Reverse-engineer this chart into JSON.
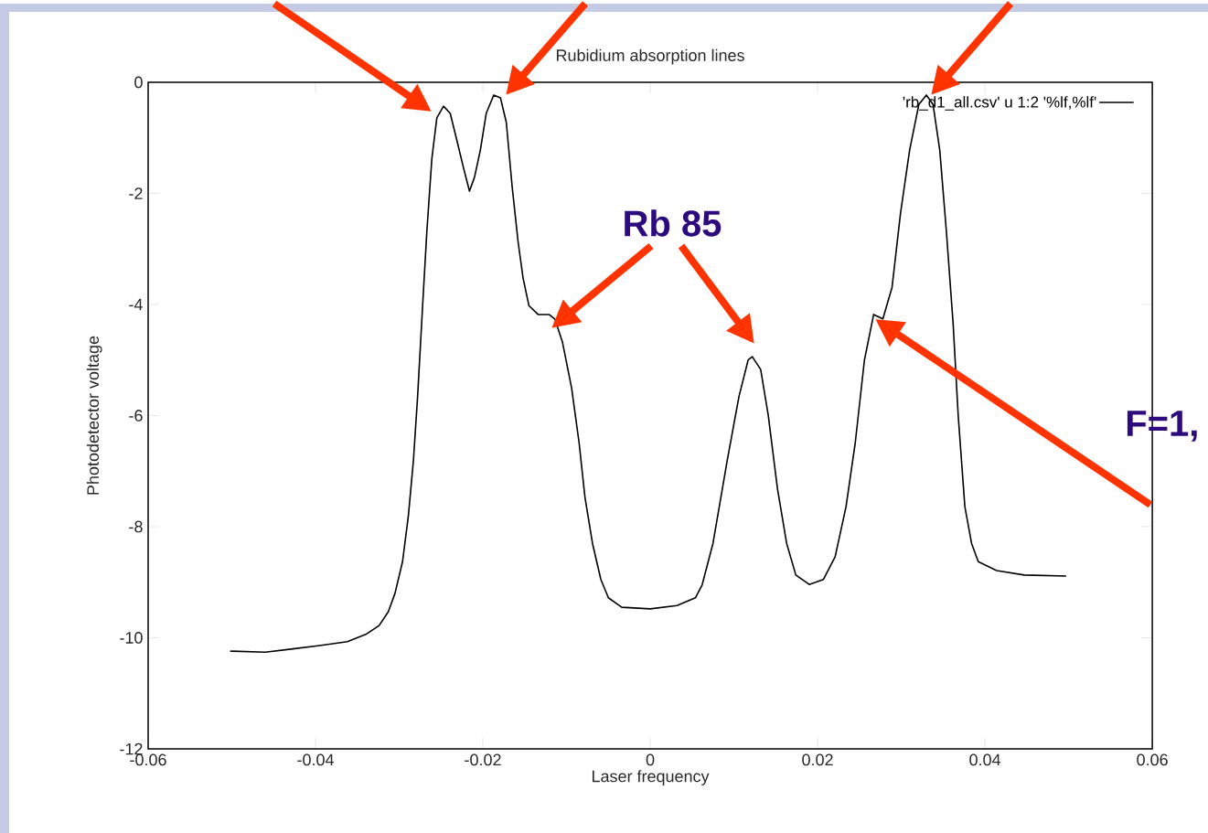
{
  "chart_data": {
    "type": "line",
    "title": "Rubidium absorption lines",
    "xlabel": "Laser frequency",
    "ylabel": "Photodetector voltage",
    "xlim": [
      -0.06,
      0.06
    ],
    "ylim": [
      -12,
      0
    ],
    "xticks": [
      -0.06,
      -0.04,
      -0.02,
      0,
      0.02,
      0.04,
      0.06
    ],
    "yticks": [
      -12,
      -10,
      -8,
      -6,
      -4,
      -2,
      0
    ],
    "grid": false,
    "legend": "top right",
    "line_style": "solid",
    "annotations": [
      "Rb 85",
      "F=1,"
    ],
    "series": [
      {
        "name": "'rb_d1_all.csv' u 1:2 '%lf,%lf'",
        "color": "#000000",
        "x": [
          -0.0502,
          -0.046,
          -0.0427,
          -0.0395,
          -0.0362,
          -0.034,
          -0.0324,
          -0.0313,
          -0.0305,
          -0.0296,
          -0.0289,
          -0.0283,
          -0.0278,
          -0.0272,
          -0.0267,
          -0.0261,
          -0.0255,
          -0.0247,
          -0.0239,
          -0.0231,
          -0.0223,
          -0.0216,
          -0.021,
          -0.0203,
          -0.0196,
          -0.0187,
          -0.0179,
          -0.0172,
          -0.0165,
          -0.0158,
          -0.0152,
          -0.0145,
          -0.0134,
          -0.0121,
          -0.0114,
          -0.0105,
          -0.0094,
          -0.0085,
          -0.0078,
          -0.0069,
          -0.0059,
          -0.005,
          -0.0034,
          0,
          0.0032,
          0.0054,
          0.0062,
          0.0075,
          0.0092,
          0.0106,
          0.0117,
          0.0122,
          0.0132,
          0.0141,
          0.0152,
          0.0163,
          0.0174,
          0.019,
          0.0207,
          0.0221,
          0.0234,
          0.0245,
          0.0256,
          0.0267,
          0.0278,
          0.0289,
          0.0299,
          0.031,
          0.0321,
          0.033,
          0.0338,
          0.0346,
          0.0354,
          0.0362,
          0.0368,
          0.0376,
          0.0384,
          0.0392,
          0.0414,
          0.0447,
          0.0497
        ],
        "values": [
          -10.24,
          -10.26,
          -10.2,
          -10.14,
          -10.07,
          -9.94,
          -9.78,
          -9.53,
          -9.2,
          -8.63,
          -7.8,
          -6.81,
          -5.66,
          -4.02,
          -2.7,
          -1.38,
          -0.64,
          -0.43,
          -0.56,
          -1.05,
          -1.55,
          -1.96,
          -1.71,
          -1.22,
          -0.56,
          -0.23,
          -0.28,
          -0.72,
          -1.88,
          -2.86,
          -3.52,
          -4.02,
          -4.18,
          -4.18,
          -4.26,
          -4.67,
          -5.5,
          -6.49,
          -7.47,
          -8.3,
          -8.95,
          -9.28,
          -9.45,
          -9.48,
          -9.42,
          -9.28,
          -9.05,
          -8.3,
          -6.81,
          -5.66,
          -5.0,
          -4.94,
          -5.17,
          -5.99,
          -7.31,
          -8.3,
          -8.87,
          -9.04,
          -8.95,
          -8.54,
          -7.64,
          -6.49,
          -5.0,
          -4.18,
          -4.26,
          -3.69,
          -2.37,
          -1.22,
          -0.4,
          -0.23,
          -0.4,
          -1.22,
          -2.7,
          -4.35,
          -5.99,
          -7.64,
          -8.3,
          -8.63,
          -8.79,
          -8.87,
          -8.89
        ]
      }
    ]
  }
}
